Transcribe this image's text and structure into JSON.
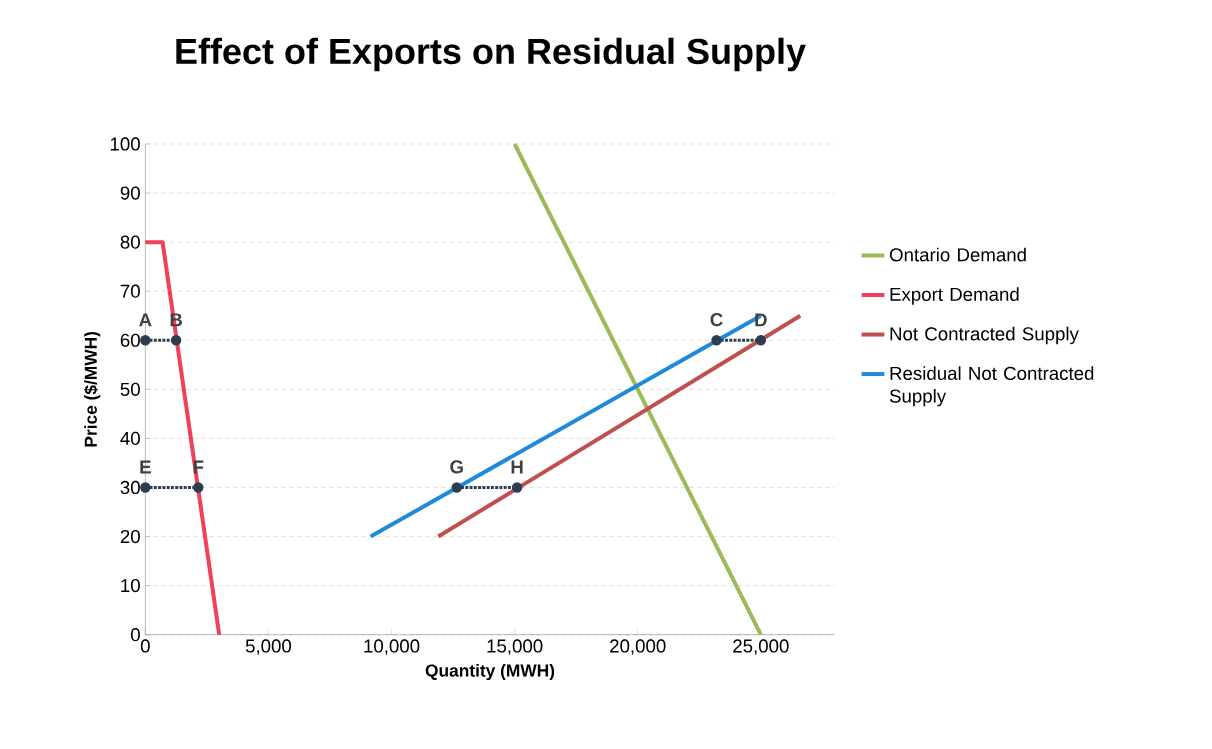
{
  "chart_data": {
    "type": "line",
    "title": "Effect of Exports on Residual Supply",
    "xlabel": "Quantity (MWH)",
    "ylabel": "Price ($/MWH)",
    "xlim": [
      0,
      28000
    ],
    "ylim": [
      0,
      100
    ],
    "xticks": [
      0,
      {
        "value": 5000,
        "label": "5,000"
      },
      {
        "value": 10000,
        "label": "10,000"
      },
      {
        "value": 15000,
        "label": "15,000"
      },
      {
        "value": 20000,
        "label": "20,000"
      },
      {
        "value": 25000,
        "label": "25,000"
      }
    ],
    "yticks": [
      0,
      10,
      20,
      30,
      40,
      50,
      60,
      70,
      80,
      90,
      100
    ],
    "grid": "y",
    "legend": "right",
    "marker": "none",
    "line_style": "solid",
    "series": [
      {
        "name": "Ontario Demand",
        "color": "#9bbb59",
        "x": [
          15000,
          25000
        ],
        "values": [
          100,
          0
        ]
      },
      {
        "name": "Export Demand",
        "color": "#f0405a",
        "x": [
          0,
          700,
          3000
        ],
        "values": [
          80,
          80,
          0
        ]
      },
      {
        "name": "Not Contracted Supply",
        "color": "#c0504d",
        "x": [
          11900,
          26600
        ],
        "values": [
          20,
          65
        ]
      },
      {
        "name": "Residual Not Contracted Supply",
        "color": "#1f8ad9",
        "x": [
          9150,
          25000
        ],
        "values": [
          20,
          65
        ]
      },
      {
        "color": "#2c3e50",
        "x": [
          0,
          1250
        ],
        "values": [
          60,
          60
        ],
        "marker": "circle",
        "line_style": "dotted"
      },
      {
        "color": "#2c3e50",
        "x": [
          23200,
          25000
        ],
        "values": [
          60,
          60
        ],
        "marker": "circle",
        "line_style": "dotted"
      },
      {
        "color": "#2c3e50",
        "x": [
          0,
          2150
        ],
        "values": [
          30,
          30
        ],
        "marker": "circle",
        "line_style": "dotted"
      },
      {
        "color": "#2c3e50",
        "x": [
          12650,
          15100
        ],
        "values": [
          30,
          30
        ],
        "marker": "circle",
        "line_style": "dotted"
      }
    ],
    "annotations": [
      {
        "text": "A",
        "x": 0,
        "y": 60
      },
      {
        "text": "B",
        "x": 1250,
        "y": 60
      },
      {
        "text": "C",
        "x": 23200,
        "y": 60
      },
      {
        "text": "D",
        "x": 25000,
        "y": 60
      },
      {
        "text": "E",
        "x": 0,
        "y": 30
      },
      {
        "text": "F",
        "x": 2150,
        "y": 30
      },
      {
        "text": "G",
        "x": 12650,
        "y": 30
      },
      {
        "text": "H",
        "x": 15100,
        "y": 30
      }
    ]
  }
}
